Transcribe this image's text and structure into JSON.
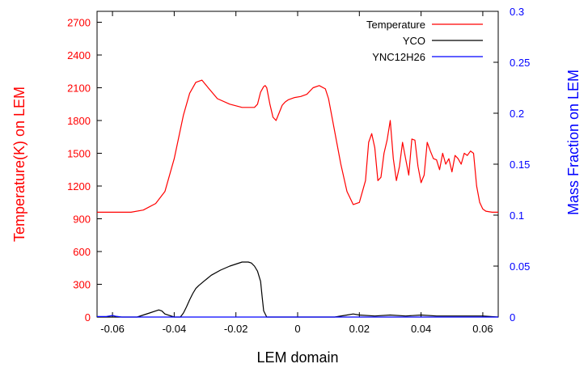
{
  "colors": {
    "left_axis": "#ff0000",
    "right_axis": "#0000ff",
    "frame": "#000000",
    "background": "#ffffff"
  },
  "chart_data": {
    "type": "line",
    "xlabel": "LEM domain",
    "ylabel_left": "Temperature(K) on LEM",
    "ylabel_right": "Mass Fraction on LEM",
    "xlim": [
      -0.065,
      0.065
    ],
    "ylim_left": [
      0,
      2800
    ],
    "ylim_right": [
      0,
      0.3
    ],
    "x_ticks": [
      -0.06,
      -0.04,
      -0.02,
      0,
      0.02,
      0.04,
      0.06
    ],
    "x_tick_labels": [
      "-0.06",
      "-0.04",
      "-0.02",
      "0",
      "0.02",
      "0.04",
      "0.06"
    ],
    "y_left_ticks": [
      0,
      300,
      600,
      900,
      1200,
      1500,
      1800,
      2100,
      2400,
      2700
    ],
    "y_left_tick_labels": [
      "0",
      "300",
      "600",
      "900",
      "1200",
      "1500",
      "1800",
      "2100",
      "2400",
      "2700"
    ],
    "y_right_ticks": [
      0,
      0.05,
      0.1,
      0.15,
      0.2,
      0.25,
      0.3
    ],
    "y_right_tick_labels": [
      "0",
      "0.05",
      "0.1",
      "0.15",
      "0.2",
      "0.25",
      "0.3"
    ],
    "grid": false,
    "legend_position": "top-right",
    "series": [
      {
        "name": "Temperature",
        "axis": "left",
        "color": "#ff0000",
        "x": [
          -0.065,
          -0.054,
          -0.05,
          -0.046,
          -0.043,
          -0.04,
          -0.037,
          -0.035,
          -0.033,
          -0.031,
          -0.029,
          -0.026,
          -0.022,
          -0.018,
          -0.014,
          -0.013,
          -0.012,
          -0.011,
          -0.0105,
          -0.01,
          -0.009,
          -0.008,
          -0.007,
          -0.006,
          -0.005,
          -0.004,
          -0.003,
          -0.001,
          0.001,
          0.003,
          0.005,
          0.007,
          0.009,
          0.01,
          0.012,
          0.014,
          0.016,
          0.018,
          0.02,
          0.022,
          0.023,
          0.024,
          0.025,
          0.026,
          0.027,
          0.028,
          0.029,
          0.03,
          0.031,
          0.032,
          0.033,
          0.034,
          0.035,
          0.036,
          0.037,
          0.038,
          0.039,
          0.04,
          0.041,
          0.042,
          0.043,
          0.044,
          0.045,
          0.046,
          0.047,
          0.048,
          0.049,
          0.05,
          0.051,
          0.052,
          0.053,
          0.054,
          0.055,
          0.056,
          0.057,
          0.058,
          0.059,
          0.06,
          0.061,
          0.063,
          0.065
        ],
        "y": [
          960,
          960,
          980,
          1040,
          1150,
          1450,
          1850,
          2050,
          2150,
          2170,
          2100,
          2000,
          1950,
          1920,
          1920,
          1950,
          2060,
          2110,
          2120,
          2100,
          1950,
          1830,
          1800,
          1870,
          1940,
          1970,
          1990,
          2010,
          2020,
          2040,
          2100,
          2120,
          2090,
          2000,
          1700,
          1400,
          1150,
          1030,
          1050,
          1250,
          1600,
          1680,
          1550,
          1250,
          1280,
          1500,
          1620,
          1800,
          1450,
          1250,
          1380,
          1600,
          1450,
          1300,
          1630,
          1620,
          1380,
          1230,
          1300,
          1600,
          1520,
          1450,
          1440,
          1350,
          1500,
          1400,
          1450,
          1330,
          1480,
          1450,
          1400,
          1500,
          1480,
          1520,
          1500,
          1200,
          1050,
          990,
          970,
          960,
          960
        ]
      },
      {
        "name": "YCO",
        "axis": "right",
        "color": "#000000",
        "x": [
          -0.065,
          -0.052,
          -0.05,
          -0.048,
          -0.046,
          -0.045,
          -0.044,
          -0.043,
          -0.04,
          -0.038,
          -0.037,
          -0.036,
          -0.035,
          -0.034,
          -0.033,
          -0.032,
          -0.03,
          -0.028,
          -0.025,
          -0.022,
          -0.02,
          -0.018,
          -0.016,
          -0.015,
          -0.014,
          -0.013,
          -0.012,
          -0.0115,
          -0.011,
          -0.01,
          0.0,
          0.012,
          0.016,
          0.018,
          0.02,
          0.025,
          0.03,
          0.035,
          0.04,
          0.045,
          0.05,
          0.055,
          0.06,
          0.065
        ],
        "y": [
          0.0,
          0.0,
          0.002,
          0.004,
          0.006,
          0.007,
          0.006,
          0.003,
          0.0,
          0.0,
          0.004,
          0.01,
          0.017,
          0.023,
          0.028,
          0.031,
          0.036,
          0.041,
          0.046,
          0.05,
          0.052,
          0.054,
          0.054,
          0.053,
          0.05,
          0.045,
          0.035,
          0.02,
          0.006,
          0.0,
          0.0,
          0.0,
          0.002,
          0.003,
          0.002,
          0.001,
          0.002,
          0.001,
          0.002,
          0.001,
          0.001,
          0.001,
          0.001,
          0.0
        ]
      },
      {
        "name": "YNC12H26",
        "axis": "right",
        "color": "#0000ff",
        "x": [
          -0.065,
          -0.062,
          -0.06,
          -0.059,
          -0.057,
          -0.05,
          -0.04,
          -0.03,
          -0.02,
          -0.01,
          0.0,
          0.01,
          0.02,
          0.03,
          0.04,
          0.05,
          0.06,
          0.065
        ],
        "y": [
          0.0005,
          0.0005,
          0.0015,
          0.0008,
          0.0,
          0.0,
          0.0,
          0.0,
          0.0,
          0.0,
          0.0,
          0.0,
          0.0,
          0.0,
          0.0,
          0.0,
          0.0,
          0.0
        ]
      }
    ]
  }
}
